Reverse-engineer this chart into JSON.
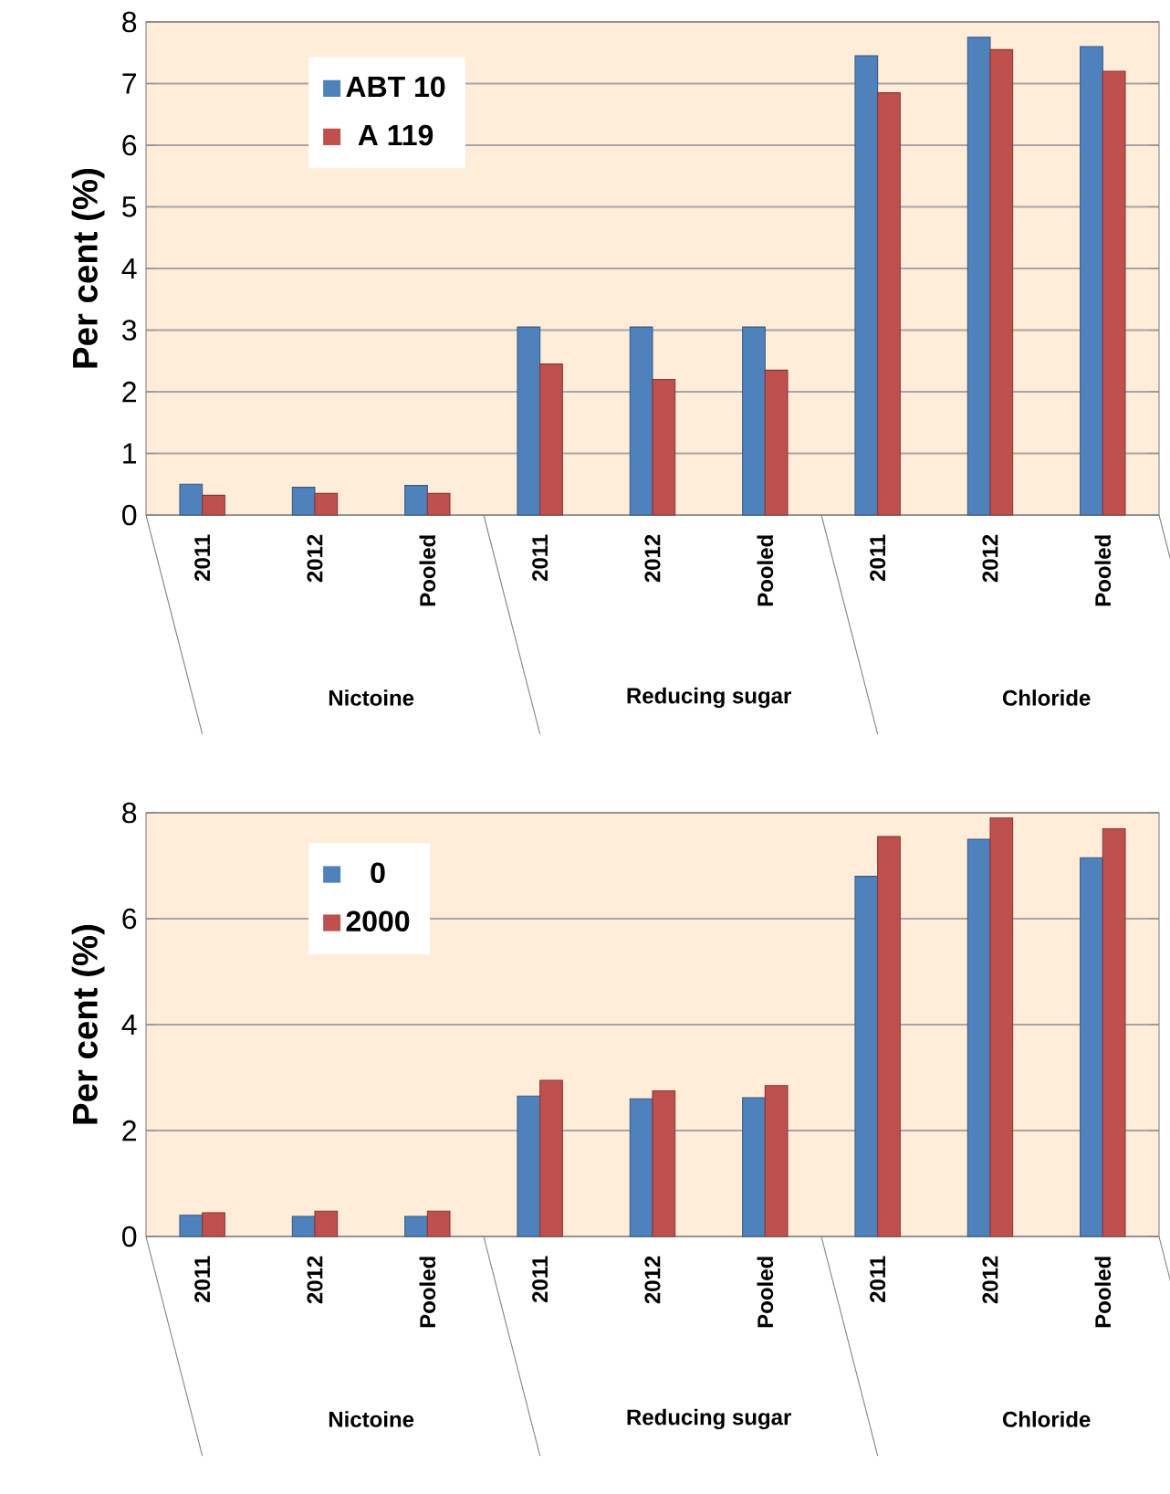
{
  "chart_data": [
    {
      "type": "bar",
      "ylabel": "Per cent (%)",
      "categories": [
        "2011",
        "2012",
        "Pooled",
        "2011",
        "2012",
        "Pooled",
        "2011",
        "2012",
        "Pooled"
      ],
      "annotations": [
        "Nictoine",
        "Reducing sugar",
        "Chloride"
      ],
      "ylim": [
        0,
        8
      ],
      "yticks": [
        0,
        1,
        2,
        3,
        4,
        5,
        6,
        7,
        8
      ],
      "grid": "y",
      "legend": "top left",
      "series": [
        {
          "name": "ABT 10",
          "color": "#4f81bd",
          "values": [
            0.5,
            0.45,
            0.48,
            3.05,
            3.05,
            3.05,
            7.45,
            7.75,
            7.6
          ]
        },
        {
          "name": "A 119",
          "color": "#c0504d",
          "values": [
            0.32,
            0.35,
            0.35,
            2.45,
            2.2,
            2.35,
            6.85,
            7.55,
            7.2
          ]
        }
      ]
    },
    {
      "type": "bar",
      "ylabel": "Per cent (%)",
      "categories": [
        "2011",
        "2012",
        "Pooled",
        "2011",
        "2012",
        "Pooled",
        "2011",
        "2012",
        "Pooled"
      ],
      "annotations": [
        "Nictoine",
        "Reducing sugar",
        "Chloride"
      ],
      "ylim": [
        0,
        8
      ],
      "yticks": [
        0,
        2,
        4,
        6,
        8
      ],
      "grid": "y",
      "legend": "top left",
      "series": [
        {
          "name": "0",
          "color": "#4f81bd",
          "values": [
            0.4,
            0.38,
            0.38,
            2.65,
            2.6,
            2.62,
            6.8,
            7.5,
            7.15
          ]
        },
        {
          "name": "2000",
          "color": "#c0504d",
          "values": [
            0.45,
            0.48,
            0.48,
            2.95,
            2.75,
            2.85,
            7.55,
            7.9,
            7.7
          ]
        }
      ]
    }
  ]
}
